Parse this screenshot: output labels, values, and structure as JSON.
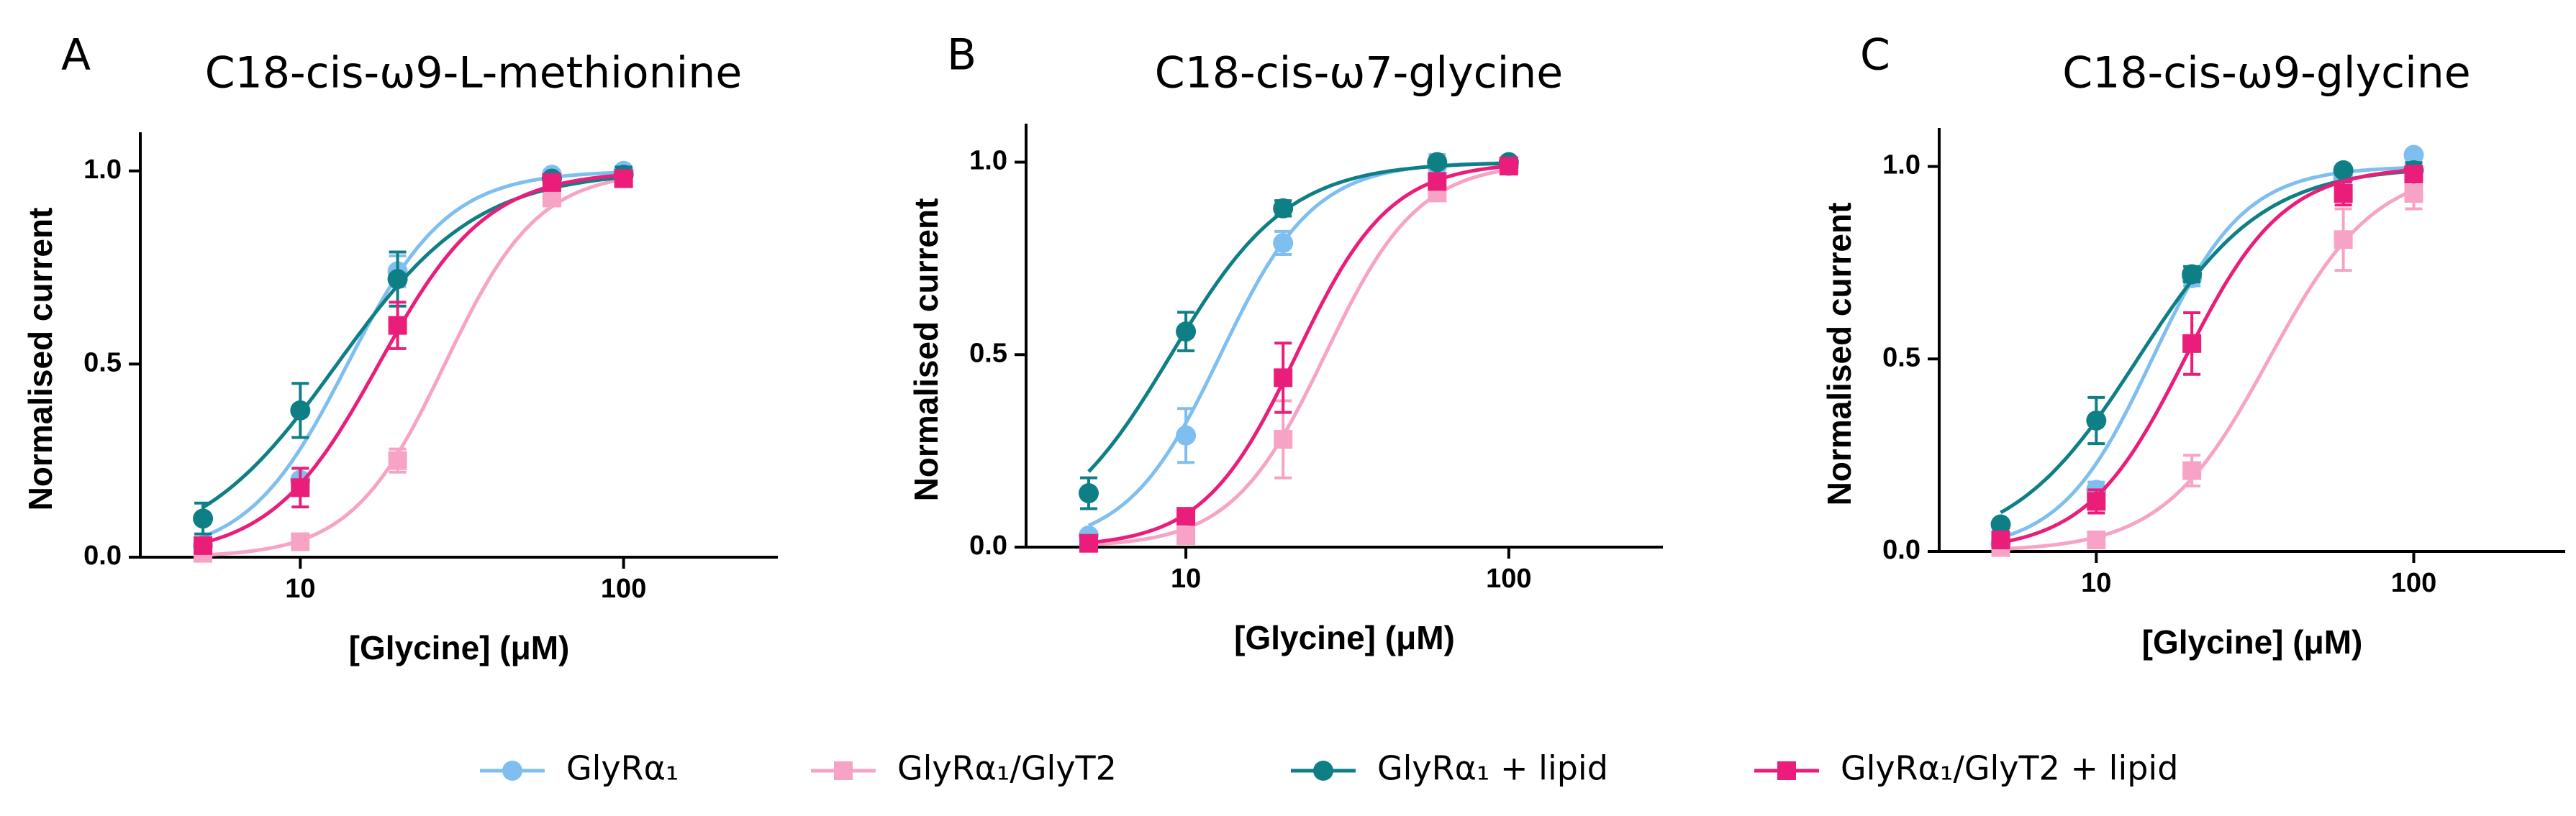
{
  "chart_data": [
    {
      "type": "line",
      "panel_label": "A",
      "title": "C18-cis-ω9-L-methionine",
      "x_label": "[Glycine] (μM)",
      "y_label": "Normalised current",
      "log_x": true,
      "xlim": [
        3.2,
        300
      ],
      "xticks": [
        10,
        100
      ],
      "ylim": [
        0,
        1.1
      ],
      "yticks": [
        {
          "value": 0,
          "label": "0.0"
        },
        {
          "value": 0.5,
          "label": "0.5"
        },
        {
          "value": 1,
          "label": "1.0"
        }
      ],
      "x": [
        5,
        10,
        20,
        60,
        100
      ],
      "series": [
        {
          "name": "GlyRα₁",
          "color": "#7fbff0",
          "marker": "circle",
          "values": [
            0.03,
            0.2,
            0.74,
            0.99,
            1.0
          ],
          "errors": [
            0.01,
            0.03,
            0.04,
            0.01,
            0.01
          ],
          "ec50": 14,
          "hill": 2.8
        },
        {
          "name": "GlyRα₁/GlyT2",
          "color": "#f7a3c6",
          "marker": "square",
          "values": [
            0.01,
            0.04,
            0.25,
            0.93,
            0.98
          ],
          "errors": [
            0.01,
            0.01,
            0.03,
            0.02,
            0.01
          ],
          "ec50": 28,
          "hill": 3
        },
        {
          "name": "GlyRα₁ + lipid",
          "color": "#0f7f86",
          "marker": "circle",
          "values": [
            0.1,
            0.38,
            0.72,
            0.98,
            0.99
          ],
          "errors": [
            0.04,
            0.07,
            0.07,
            0.01,
            0.02
          ],
          "ec50": 13,
          "hill": 2
        },
        {
          "name": "GlyRα₁/GlyT2 + lipid",
          "color": "#ea1e7a",
          "marker": "square",
          "values": [
            0.03,
            0.18,
            0.6,
            0.97,
            0.98
          ],
          "errors": [
            0.01,
            0.05,
            0.06,
            0.01,
            0.01
          ],
          "ec50": 17.5,
          "hill": 2.6
        }
      ]
    },
    {
      "type": "line",
      "panel_label": "B",
      "title": "C18-cis-ω7-glycine",
      "x_label": "[Glycine] (μM)",
      "y_label": "Normalised current",
      "log_x": true,
      "xlim": [
        3.2,
        300
      ],
      "xticks": [
        10,
        100
      ],
      "ylim": [
        0,
        1.1
      ],
      "yticks": [
        {
          "value": 0,
          "label": "0.0"
        },
        {
          "value": 0.5,
          "label": "0.5"
        },
        {
          "value": 1,
          "label": "1.0"
        }
      ],
      "x": [
        5,
        10,
        20,
        60,
        100
      ],
      "series": [
        {
          "name": "GlyRα₁",
          "color": "#7fbff0",
          "marker": "circle",
          "values": [
            0.03,
            0.29,
            0.79,
            0.99,
            0.99
          ],
          "errors": [
            0.01,
            0.07,
            0.03,
            0.03,
            0.01
          ],
          "ec50": 12.8,
          "hill": 3
        },
        {
          "name": "GlyRα₁/GlyT2",
          "color": "#f7a3c6",
          "marker": "square",
          "values": [
            0.01,
            0.03,
            0.28,
            0.92,
            0.99
          ],
          "errors": [
            0.005,
            0.01,
            0.1,
            0.02,
            0.01
          ],
          "ec50": 27,
          "hill": 3
        },
        {
          "name": "GlyRα₁ + lipid",
          "color": "#0f7f86",
          "marker": "circle",
          "values": [
            0.14,
            0.56,
            0.88,
            1.0,
            1.0
          ],
          "errors": [
            0.04,
            0.05,
            0.02,
            0.01,
            0.01
          ],
          "ec50": 9,
          "hill": 2.4
        },
        {
          "name": "GlyRα₁/GlyT2 + lipid",
          "color": "#ea1e7a",
          "marker": "square",
          "values": [
            0.01,
            0.08,
            0.44,
            0.95,
            0.99
          ],
          "errors": [
            0.005,
            0.02,
            0.09,
            0.02,
            0.01
          ],
          "ec50": 22,
          "hill": 3
        }
      ]
    },
    {
      "type": "line",
      "panel_label": "C",
      "title": "C18-cis-ω9-glycine",
      "x_label": "[Glycine] (μM)",
      "y_label": "Normalised current",
      "log_x": true,
      "xlim": [
        3.2,
        300
      ],
      "xticks": [
        10,
        100
      ],
      "ylim": [
        0,
        1.1
      ],
      "yticks": [
        {
          "value": 0,
          "label": "0.0"
        },
        {
          "value": 0.5,
          "label": "0.5"
        },
        {
          "value": 1,
          "label": "1.0"
        }
      ],
      "x": [
        5,
        10,
        20,
        60,
        100
      ],
      "series": [
        {
          "name": "GlyRα₁",
          "color": "#7fbff0",
          "marker": "circle",
          "values": [
            0.02,
            0.16,
            0.71,
            0.97,
            1.03
          ],
          "errors": [
            0.01,
            0.02,
            0.02,
            0.01,
            0.01
          ],
          "ec50": 15,
          "hill": 3
        },
        {
          "name": "GlyRα₁/GlyT2",
          "color": "#f7a3c6",
          "marker": "square",
          "values": [
            0.01,
            0.03,
            0.21,
            0.81,
            0.93
          ],
          "errors": [
            0.01,
            0.01,
            0.04,
            0.08,
            0.04
          ],
          "ec50": 35,
          "hill": 2.6
        },
        {
          "name": "GlyRα₁ + lipid",
          "color": "#0f7f86",
          "marker": "circle",
          "values": [
            0.07,
            0.34,
            0.72,
            0.99,
            0.99
          ],
          "errors": [
            0.01,
            0.06,
            0.02,
            0.01,
            0.02
          ],
          "ec50": 13.5,
          "hill": 2.2
        },
        {
          "name": "GlyRα₁/GlyT2 + lipid",
          "color": "#ea1e7a",
          "marker": "square",
          "values": [
            0.03,
            0.13,
            0.54,
            0.93,
            0.98
          ],
          "errors": [
            0.01,
            0.03,
            0.08,
            0.03,
            0.02
          ],
          "ec50": 19,
          "hill": 2.8
        }
      ]
    }
  ]
}
